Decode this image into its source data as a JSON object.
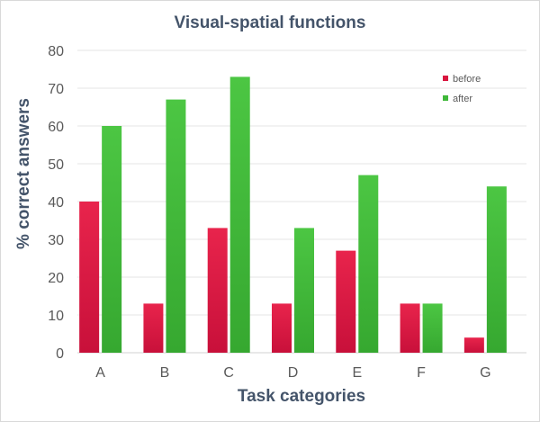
{
  "chart_data": {
    "type": "bar",
    "title": "Visual-spatial  functions",
    "xlabel": "Task categories",
    "ylabel": "% correct answers",
    "categories": [
      "A",
      "B",
      "C",
      "D",
      "E",
      "F",
      "G"
    ],
    "series": [
      {
        "name": "before",
        "values": [
          40,
          13,
          33,
          13,
          27,
          13,
          4
        ]
      },
      {
        "name": "after",
        "values": [
          60,
          67,
          73,
          33,
          47,
          13,
          44
        ]
      }
    ],
    "ylim": [
      0,
      80
    ],
    "yticks": [
      0,
      10,
      20,
      30,
      40,
      50,
      60,
      70,
      80
    ],
    "grid": true,
    "legend_position": "top-right",
    "colors": {
      "before": "#d9163f",
      "after": "#40b83a"
    }
  }
}
